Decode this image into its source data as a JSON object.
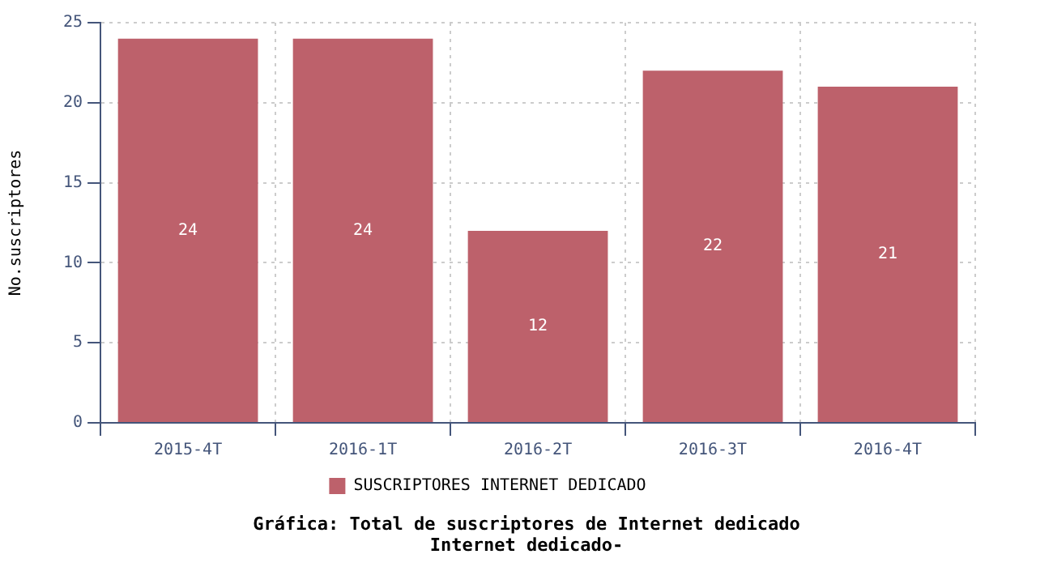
{
  "chart_data": {
    "type": "bar",
    "title": "Gráfica: Total de suscriptores de Internet dedicado",
    "subtitle": "Internet dedicado-",
    "ylabel": "No.suscriptores",
    "categories": [
      "2015-4T",
      "2016-1T",
      "2016-2T",
      "2016-3T",
      "2016-4T"
    ],
    "series": [
      {
        "name": "SUSCRIPTORES INTERNET DEDICADO",
        "color": "#bd616b",
        "values": [
          24,
          24,
          12,
          22,
          21
        ]
      }
    ],
    "ylim": [
      0,
      25
    ],
    "yticks": [
      0,
      5,
      10,
      15,
      20,
      25
    ],
    "grid": true,
    "legend": "bottom",
    "data_labels": true
  }
}
